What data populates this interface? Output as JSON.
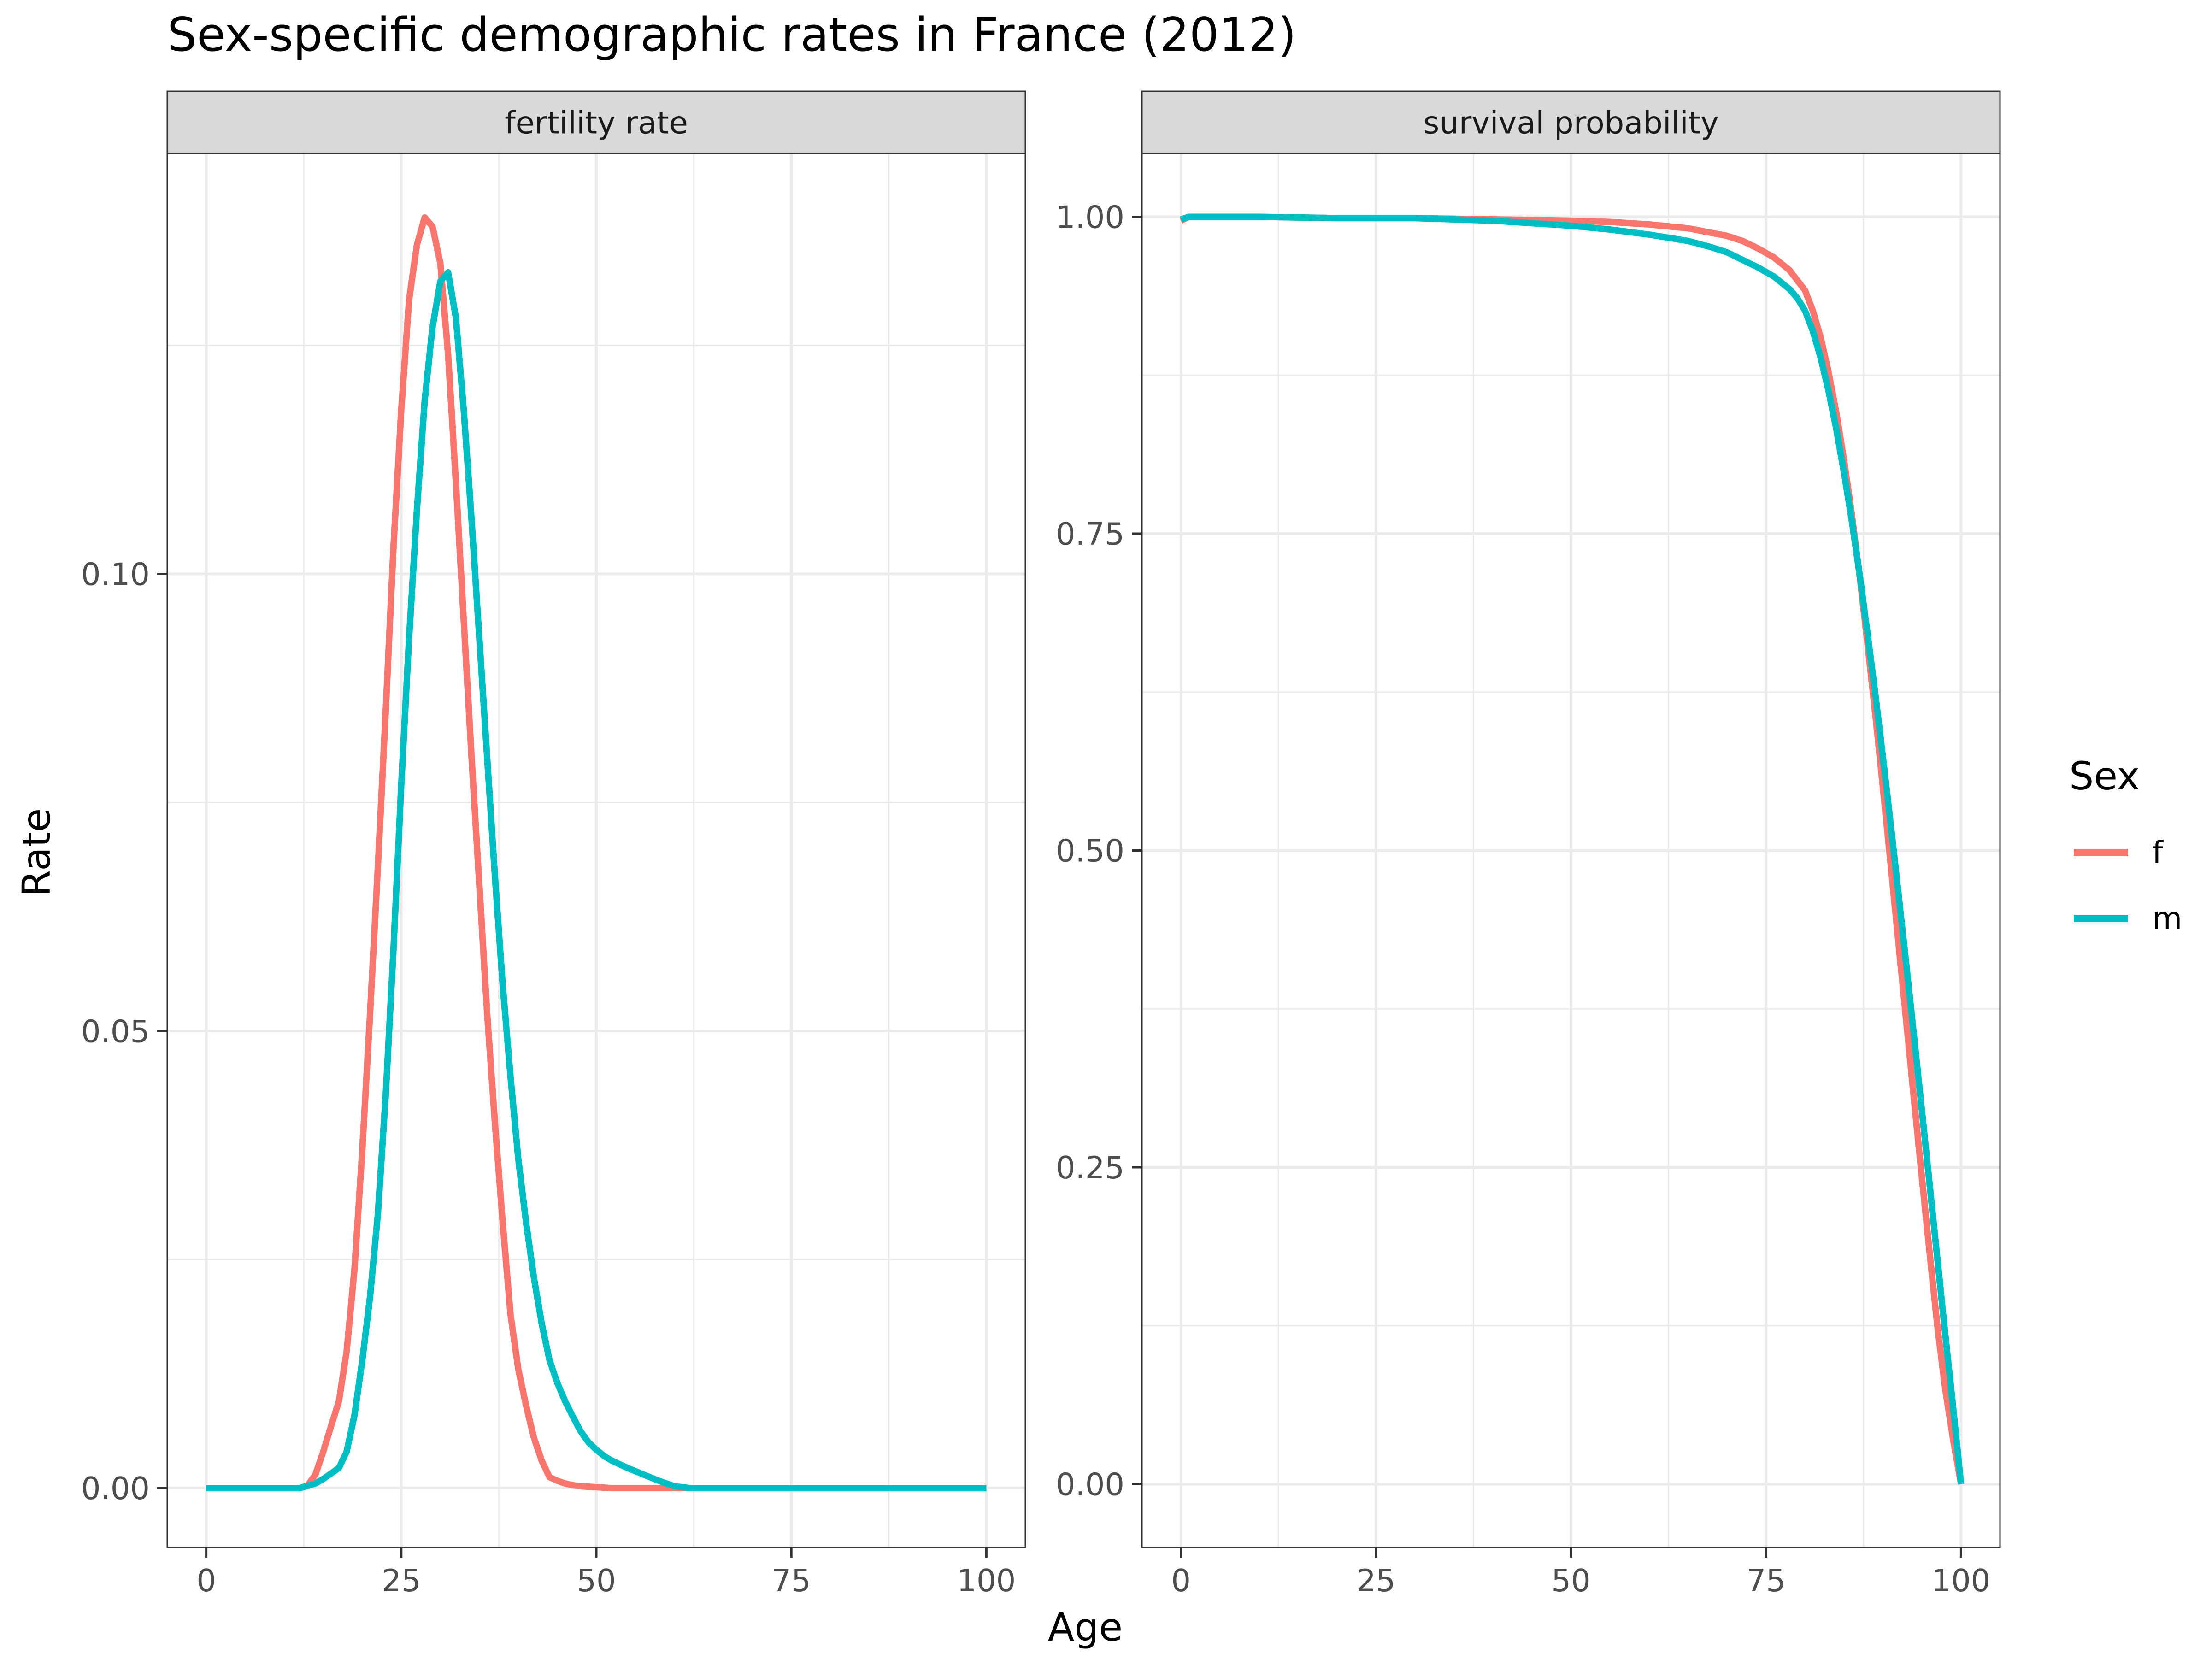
{
  "chart_data": {
    "type": "line",
    "title": "Sex-specific demographic rates in France (2012)",
    "xlabel": "Age",
    "ylabel": "Rate",
    "grid": true,
    "legend": {
      "title": "Sex",
      "placement": "right",
      "items": [
        {
          "label": "f",
          "color": "#F8766D"
        },
        {
          "label": "m",
          "color": "#00BFC4"
        }
      ]
    },
    "facets": [
      {
        "strip": "fertility rate",
        "xlim": [
          -5,
          105
        ],
        "ylim": [
          -0.0065,
          0.146
        ],
        "x_ticks": [
          0,
          25,
          50,
          75,
          100
        ],
        "x_tick_labels": [
          "0",
          "25",
          "50",
          "75",
          "100"
        ],
        "y_ticks": [
          0,
          0.05,
          0.1
        ],
        "y_tick_labels": [
          "0.00",
          "0.05",
          "0.10"
        ],
        "series": [
          {
            "name": "f",
            "color": "#F8766D",
            "x": [
              0,
              5,
              10,
              12,
              13,
              14,
              15,
              16,
              17,
              18,
              19,
              20,
              21,
              22,
              23,
              24,
              25,
              26,
              27,
              28,
              29,
              30,
              31,
              32,
              33,
              34,
              35,
              36,
              37,
              38,
              39,
              40,
              41,
              42,
              43,
              44,
              45,
              46,
              47,
              48,
              50,
              52,
              55,
              60,
              65,
              70,
              75,
              80,
              85,
              90,
              95,
              100
            ],
            "y": [
              0,
              0,
              0,
              0,
              0.0003,
              0.0015,
              0.004,
              0.0068,
              0.0095,
              0.015,
              0.024,
              0.037,
              0.052,
              0.068,
              0.085,
              0.103,
              0.118,
              0.13,
              0.136,
              0.139,
              0.138,
              0.134,
              0.124,
              0.11,
              0.095,
              0.08,
              0.066,
              0.052,
              0.04,
              0.029,
              0.019,
              0.013,
              0.009,
              0.0055,
              0.003,
              0.0012,
              0.0008,
              0.0005,
              0.0003,
              0.0002,
              0.0001,
              0,
              0,
              0,
              0,
              0,
              0,
              0,
              0,
              0,
              0,
              0
            ]
          },
          {
            "name": "m",
            "color": "#00BFC4",
            "x": [
              0,
              5,
              10,
              12,
              14,
              15,
              16,
              17,
              18,
              19,
              20,
              21,
              22,
              23,
              24,
              25,
              26,
              27,
              28,
              29,
              30,
              31,
              32,
              33,
              34,
              35,
              36,
              37,
              38,
              39,
              40,
              41,
              42,
              43,
              44,
              45,
              46,
              47,
              48,
              49,
              50,
              51,
              52,
              54,
              56,
              58,
              60,
              62,
              65,
              70,
              75,
              80,
              85,
              90,
              95,
              100
            ],
            "y": [
              0,
              0,
              0,
              0,
              0.0005,
              0.001,
              0.0016,
              0.0022,
              0.004,
              0.008,
              0.014,
              0.021,
              0.03,
              0.043,
              0.059,
              0.077,
              0.093,
              0.107,
              0.119,
              0.127,
              0.132,
              0.133,
              0.128,
              0.118,
              0.106,
              0.093,
              0.08,
              0.067,
              0.055,
              0.045,
              0.036,
              0.029,
              0.023,
              0.018,
              0.014,
              0.0115,
              0.0095,
              0.0078,
              0.0062,
              0.005,
              0.0042,
              0.0035,
              0.003,
              0.0022,
              0.0015,
              0.0008,
              0.0002,
              0,
              0,
              0,
              0,
              0,
              0,
              0,
              0,
              0
            ]
          }
        ]
      },
      {
        "strip": "survival probability",
        "xlim": [
          -5,
          105
        ],
        "ylim": [
          -0.05,
          1.05
        ],
        "x_ticks": [
          0,
          25,
          50,
          75,
          100
        ],
        "x_tick_labels": [
          "0",
          "25",
          "50",
          "75",
          "100"
        ],
        "y_ticks": [
          0,
          0.25,
          0.5,
          0.75,
          1.0
        ],
        "y_tick_labels": [
          "0.00",
          "0.25",
          "0.50",
          "0.75",
          "1.00"
        ],
        "series": [
          {
            "name": "f",
            "color": "#F8766D",
            "x": [
              0,
              1,
              10,
              20,
              30,
              40,
              50,
              55,
              60,
              65,
              70,
              72,
              74,
              76,
              78,
              80,
              81,
              82,
              83,
              84,
              85,
              86,
              87,
              88,
              89,
              90,
              91,
              92,
              93,
              94,
              95,
              96,
              97,
              98,
              99,
              100
            ],
            "y": [
              0.997,
              1.0,
              1.0,
              0.999,
              0.999,
              0.998,
              0.997,
              0.996,
              0.994,
              0.991,
              0.985,
              0.981,
              0.975,
              0.968,
              0.958,
              0.942,
              0.926,
              0.905,
              0.878,
              0.846,
              0.808,
              0.765,
              0.717,
              0.664,
              0.608,
              0.549,
              0.488,
              0.426,
              0.364,
              0.302,
              0.241,
              0.181,
              0.123,
              0.074,
              0.035,
              0.0
            ]
          },
          {
            "name": "m",
            "color": "#00BFC4",
            "x": [
              0,
              1,
              10,
              20,
              30,
              40,
              45,
              50,
              55,
              60,
              65,
              68,
              70,
              72,
              74,
              76,
              78,
              79,
              80,
              81,
              82,
              83,
              84,
              85,
              86,
              87,
              88,
              89,
              90,
              91,
              92,
              93,
              94,
              95,
              96,
              97,
              98,
              99,
              100
            ],
            "y": [
              0.998,
              1.0,
              1.0,
              0.999,
              0.999,
              0.997,
              0.995,
              0.993,
              0.99,
              0.986,
              0.981,
              0.976,
              0.972,
              0.966,
              0.96,
              0.953,
              0.943,
              0.936,
              0.926,
              0.91,
              0.889,
              0.863,
              0.833,
              0.798,
              0.76,
              0.718,
              0.672,
              0.624,
              0.573,
              0.52,
              0.465,
              0.409,
              0.352,
              0.294,
              0.235,
              0.176,
              0.117,
              0.06,
              0.0
            ]
          }
        ]
      }
    ]
  }
}
